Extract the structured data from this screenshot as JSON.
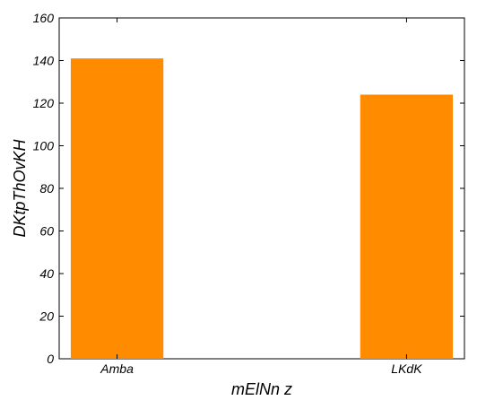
{
  "chart_data": {
    "type": "bar",
    "categories": [
      "Amba",
      "LKdK"
    ],
    "values": [
      141,
      124
    ],
    "xlabel": "mElNn z",
    "ylabel": "DKtpThOvKH",
    "ylim": [
      0,
      160
    ],
    "yticks": [
      0,
      20,
      40,
      60,
      80,
      100,
      120,
      140,
      160
    ],
    "grid": false,
    "legend": "none"
  },
  "colors": {
    "bar": "#ff8c00",
    "axis": "#000000",
    "background": "#ffffff"
  }
}
